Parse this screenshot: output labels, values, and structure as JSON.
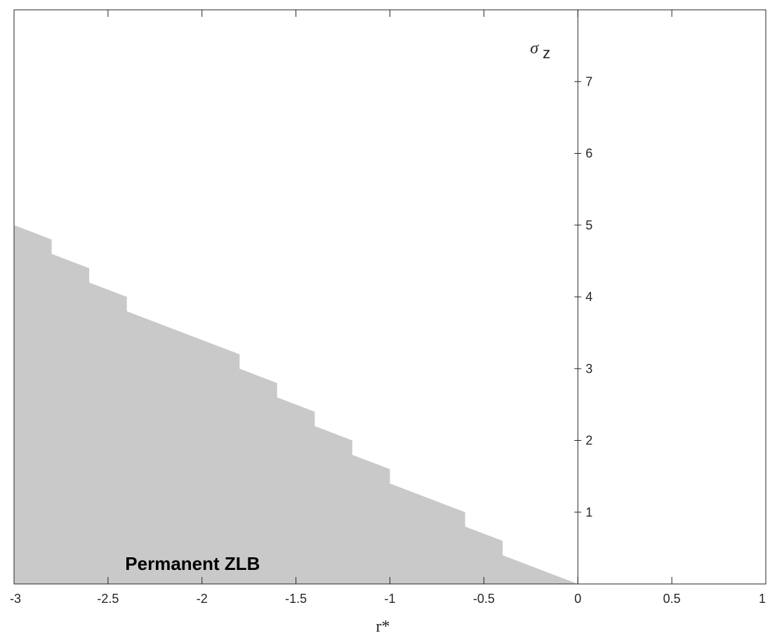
{
  "chart_data": {
    "type": "area",
    "title": "",
    "xlabel": "r*",
    "ylabel": {
      "symbol": "σ",
      "subscript": "z"
    },
    "xlim": [
      -3,
      1
    ],
    "ylim": [
      0,
      8
    ],
    "xticks": [
      -3,
      -2.5,
      -2,
      -1.5,
      -1,
      -0.5,
      0,
      0.5,
      1
    ],
    "xtick_labels": [
      "-3",
      "-2.5",
      "-2",
      "-1.5",
      "-1",
      "-0.5",
      "0",
      "0.5",
      "1"
    ],
    "yticks": [
      1,
      2,
      3,
      4,
      5,
      6,
      7
    ],
    "ytick_labels": [
      "1",
      "2",
      "3",
      "4",
      "5",
      "6",
      "7"
    ],
    "y_axis_position": "x = 0",
    "grid": false,
    "legend": "none",
    "region": {
      "label": "Permanent ZLB",
      "fill_color": "#c9c9c9",
      "boundary": [
        [
          -3,
          5.0
        ],
        [
          -2.8,
          4.8
        ],
        [
          -2.8,
          4.6
        ],
        [
          -2.6,
          4.4
        ],
        [
          -2.6,
          4.2
        ],
        [
          -2.4,
          4.0
        ],
        [
          -2.4,
          3.8
        ],
        [
          -1.8,
          3.2
        ],
        [
          -1.8,
          3.0
        ],
        [
          -1.6,
          2.8
        ],
        [
          -1.6,
          2.6
        ],
        [
          -1.4,
          2.4
        ],
        [
          -1.4,
          2.2
        ],
        [
          -1.2,
          2.0
        ],
        [
          -1.2,
          1.8
        ],
        [
          -1.0,
          1.6
        ],
        [
          -1.0,
          1.4
        ],
        [
          -0.6,
          1.0
        ],
        [
          -0.6,
          0.8
        ],
        [
          -0.4,
          0.6
        ],
        [
          -0.4,
          0.4
        ],
        [
          0,
          0
        ]
      ],
      "label_position": [
        -2.05,
        0.42
      ]
    },
    "colors": {
      "axis": "#262626",
      "background": "#ffffff"
    }
  }
}
